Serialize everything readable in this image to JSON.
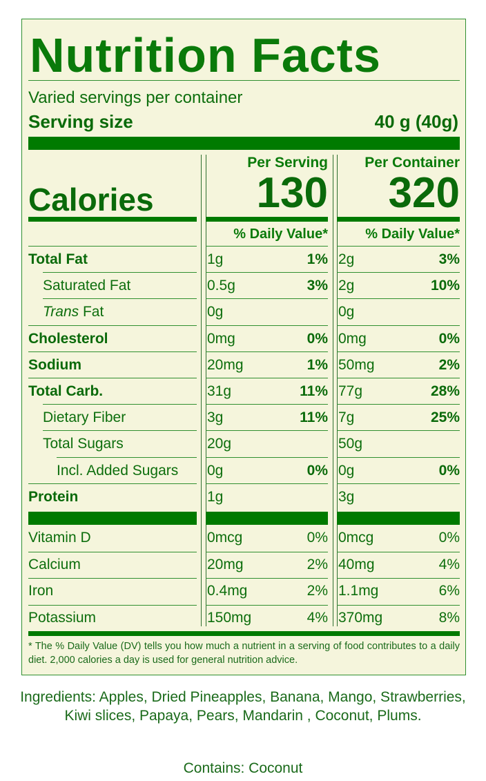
{
  "title": "Nutrition Facts",
  "servings_per_container": "Varied servings per container",
  "serving_size_label": "Serving size",
  "serving_size_value": "40 g (40g)",
  "columns": {
    "per_serving": "Per Serving",
    "per_container": "Per Container",
    "dv_header": "% Daily Value*"
  },
  "calories": {
    "label": "Calories",
    "per_serving": "130",
    "per_container": "320"
  },
  "nutrients": [
    {
      "name": "Total Fat",
      "style": "bold",
      "serving_amount": "1g",
      "serving_dv": "1%",
      "container_amount": "2g",
      "container_dv": "3%"
    },
    {
      "name": "Saturated Fat",
      "style": "indent1",
      "serving_amount": "0.5g",
      "serving_dv": "3%",
      "container_amount": "2g",
      "container_dv": "10%"
    },
    {
      "name_italic": "Trans",
      "name": " Fat",
      "style": "indent1",
      "serving_amount": "0g",
      "serving_dv": "",
      "container_amount": "0g",
      "container_dv": ""
    },
    {
      "name": "Cholesterol",
      "style": "bold",
      "serving_amount": "0mg",
      "serving_dv": "0%",
      "container_amount": "0mg",
      "container_dv": "0%"
    },
    {
      "name": "Sodium",
      "style": "bold",
      "serving_amount": "20mg",
      "serving_dv": "1%",
      "container_amount": "50mg",
      "container_dv": "2%"
    },
    {
      "name": "Total Carb.",
      "style": "bold",
      "serving_amount": "31g",
      "serving_dv": "11%",
      "container_amount": "77g",
      "container_dv": "28%"
    },
    {
      "name": "Dietary Fiber",
      "style": "indent1",
      "serving_amount": "3g",
      "serving_dv": "11%",
      "container_amount": "7g",
      "container_dv": "25%"
    },
    {
      "name": "Total Sugars",
      "style": "indent1",
      "serving_amount": "20g",
      "serving_dv": "",
      "container_amount": "50g",
      "container_dv": ""
    },
    {
      "name": "Incl. Added Sugars",
      "style": "indent2",
      "serving_amount": "0g",
      "serving_dv": "0%",
      "container_amount": "0g",
      "container_dv": "0%"
    },
    {
      "name": "Protein",
      "style": "bold",
      "serving_amount": "1g",
      "serving_dv": "",
      "container_amount": "3g",
      "container_dv": ""
    }
  ],
  "vitamins": [
    {
      "name": "Vitamin D",
      "serving_amount": "0mcg",
      "serving_dv": "0%",
      "container_amount": "0mcg",
      "container_dv": "0%"
    },
    {
      "name": "Calcium",
      "serving_amount": "20mg",
      "serving_dv": "2%",
      "container_amount": "40mg",
      "container_dv": "4%"
    },
    {
      "name": "Iron",
      "serving_amount": "0.4mg",
      "serving_dv": "2%",
      "container_amount": "1.1mg",
      "container_dv": "6%"
    },
    {
      "name": "Potassium",
      "serving_amount": "150mg",
      "serving_dv": "4%",
      "container_amount": "370mg",
      "container_dv": "8%"
    }
  ],
  "footnote": "* The % Daily Value (DV) tells you how much a nutrient in a serving of food contributes to a daily diet. 2,000 calories a day is used for general nutrition advice.",
  "ingredients": "Ingredients: Apples, Dried Pineapples, Banana, Mango, Strawberries, Kiwi slices, Papaya, Pears, Mandarin , Coconut, Plums.",
  "contains": "Contains: Coconut",
  "colors": {
    "label_bg": "#f5f5dc",
    "accent": "#007a00",
    "text": "#0d6e0d"
  }
}
